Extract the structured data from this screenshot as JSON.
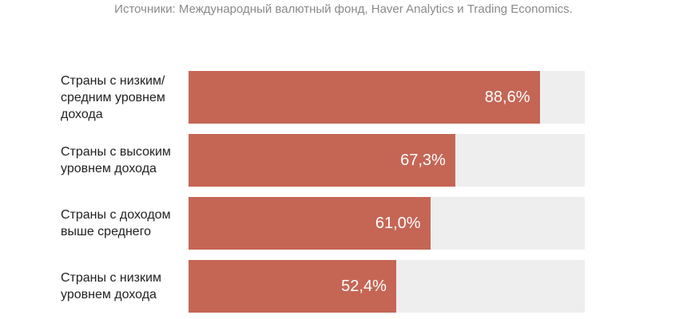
{
  "source": "Источники: Международный валютный фонд, Haver Analytics и Trading Economics.",
  "colors": {
    "bar": "#c56655",
    "track": "#eeeeee",
    "value_text": "#ffffff"
  },
  "chart_data": {
    "type": "bar",
    "orientation": "horizontal",
    "title": "",
    "xlabel": "",
    "ylabel": "",
    "xlim": [
      0,
      100
    ],
    "categories": [
      "Страны с низким/\nсредним уровнем\nдохода",
      "Страны с высоким\nуровнем дохода",
      "Страны с  доходом\nвыше среднего",
      "Страны с низким\nуровнем дохода"
    ],
    "values": [
      88.6,
      67.3,
      61.0,
      52.4
    ],
    "value_labels": [
      "88,6%",
      "67,3%",
      "61,0%",
      "52,4%"
    ]
  }
}
